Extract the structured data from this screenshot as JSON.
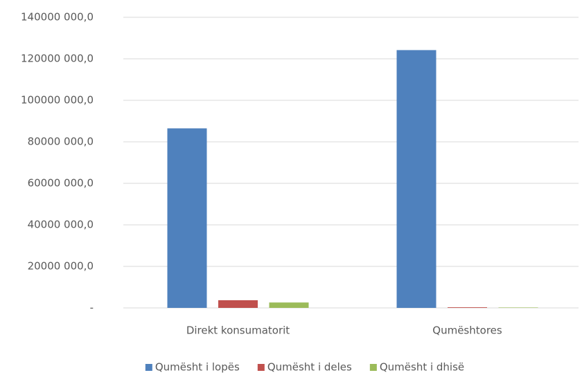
{
  "chart_data": {
    "type": "bar",
    "categories": [
      "Direkt  konsumatorit",
      "Qumështores"
    ],
    "series": [
      {
        "name": "Qumësht i lopës",
        "color": "#4f81bd",
        "values": [
          86500,
          124200
        ]
      },
      {
        "name": "Qumësht i deles",
        "color": "#c0504d",
        "values": [
          3700,
          300
        ]
      },
      {
        "name": "Qumësht i dhisë",
        "color": "#9bbb59",
        "values": [
          2600,
          200
        ]
      }
    ],
    "ylim": [
      0,
      140000
    ],
    "yticks": [
      {
        "value": 0,
        "label": "-"
      },
      {
        "value": 20000,
        "label": "20000 000,0"
      },
      {
        "value": 40000,
        "label": "40000 000,0"
      },
      {
        "value": 60000,
        "label": "60000 000,0"
      },
      {
        "value": 80000,
        "label": "80000 000,0"
      },
      {
        "value": 100000,
        "label": "100000 000,0"
      },
      {
        "value": 120000,
        "label": "120000 000,0"
      },
      {
        "value": 140000,
        "label": "140000 000,0"
      }
    ],
    "grid": true,
    "legend": "bottom"
  }
}
